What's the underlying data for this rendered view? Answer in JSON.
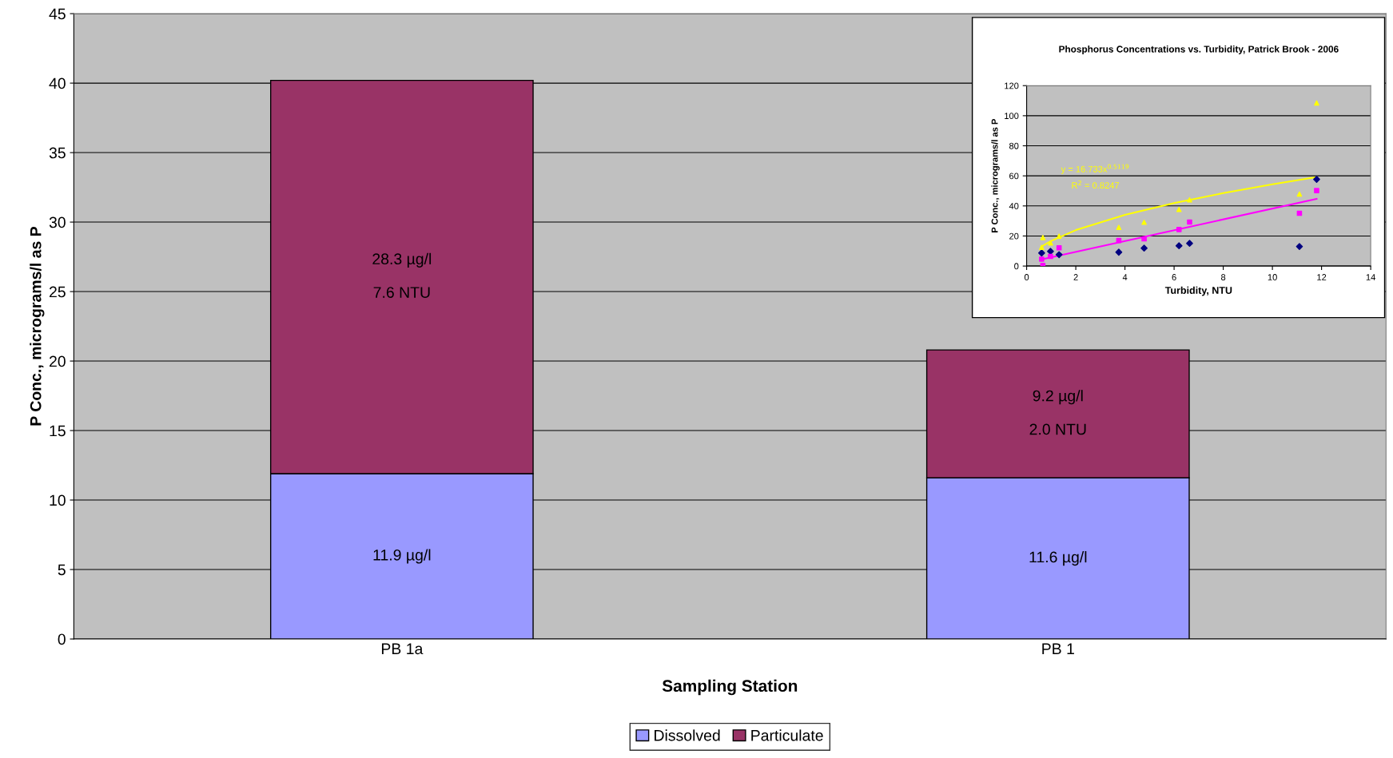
{
  "chart_data": [
    {
      "type": "bar",
      "stacked": true,
      "xlabel": "Sampling Station",
      "ylabel": "P Conc., micrograms/l as P",
      "categories": [
        "PB 1a",
        "PB 1"
      ],
      "ylim": [
        0,
        45
      ],
      "yticks": [
        0,
        5,
        10,
        15,
        20,
        25,
        30,
        35,
        40,
        45
      ],
      "grid": "y",
      "legend": "bottom",
      "series": [
        {
          "name": "Dissolved",
          "color": "#9999ff",
          "values": [
            11.9,
            11.6
          ],
          "value_labels": [
            "11.9 µg/l",
            "11.6 µg/l"
          ]
        },
        {
          "name": "Particulate",
          "color": "#993366",
          "values": [
            28.3,
            9.2
          ],
          "value_labels": [
            "28.3 µg/l\n\n7.6 NTU",
            "9.2 µg/l\n\n2.0 NTU"
          ]
        }
      ]
    },
    {
      "type": "scatter",
      "title": "Phosphorus Concentrations vs. Turbidity, Patrick Brook - 2006",
      "xlabel": "Turbidity, NTU",
      "ylabel": "P Conc., micrograms/l as P",
      "xlim": [
        0,
        14
      ],
      "xticks": [
        0,
        2,
        4,
        6,
        8,
        10,
        12,
        14
      ],
      "ylim": [
        0,
        120
      ],
      "yticks": [
        0,
        20,
        40,
        60,
        80,
        100,
        120
      ],
      "grid": "y",
      "annotations": [
        "y = 16.733x$^{0.5119}$",
        "R$^{2}$ = 0.8247"
      ],
      "series": [
        {
          "color": "#000080",
          "marker": "diamond",
          "x": [
            0.61,
            0.97,
            1.32,
            3.75,
            4.78,
            6.2,
            6.63,
            11.1,
            11.8
          ],
          "values": [
            8.7,
            9.8,
            7.6,
            9.2,
            11.9,
            13.5,
            15.1,
            13.0,
            57.7
          ]
        },
        {
          "color": "#ff00ff",
          "marker": "square",
          "x": [
            0.61,
            0.66,
            0.97,
            1.32,
            3.75,
            4.78,
            6.2,
            6.63,
            11.1,
            11.8
          ],
          "values": [
            4.6,
            0.4,
            6.4,
            12.1,
            17.0,
            18.1,
            24.3,
            29.3,
            35.1,
            50.2
          ]
        },
        {
          "color": "#ffff00",
          "marker": "triangle",
          "x": [
            0.61,
            0.66,
            0.97,
            1.32,
            3.75,
            4.78,
            6.2,
            6.63,
            11.1,
            11.8
          ],
          "values": [
            12.4,
            19.0,
            15.4,
            19.9,
            25.7,
            29.1,
            37.6,
            44.0,
            47.9,
            108.5
          ]
        },
        {
          "type": "line",
          "color": "#ffff00",
          "marker": "none",
          "x": [
            0.61,
            1,
            2,
            4,
            6,
            8,
            10,
            11.8
          ],
          "values": [
            13.0,
            16.7,
            23.9,
            34.0,
            41.9,
            48.5,
            54.4,
            59.2
          ]
        },
        {
          "type": "line",
          "color": "#ff00ff",
          "marker": "none",
          "x": [
            0.61,
            11.8
          ],
          "values": [
            4.4,
            44.7
          ]
        }
      ]
    }
  ]
}
